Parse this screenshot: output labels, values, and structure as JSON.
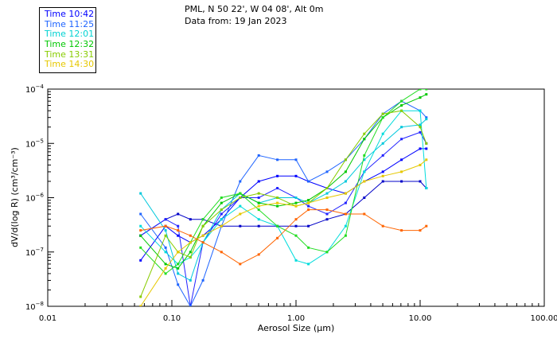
{
  "header": {
    "location": "PML, N 50 22', W 04 08', Alt 0m",
    "date": "Data from: 19 Jan 2023"
  },
  "chart_data": {
    "type": "line",
    "xlabel": "Aerosol Size (μm)",
    "ylabel": "dV/d(log R) (cm³/cm⁻³)",
    "xscale": "log",
    "yscale": "log",
    "xlim": [
      0.01,
      100
    ],
    "ylim": [
      1e-08,
      0.0001
    ],
    "grid": false,
    "legend_position": "top-left (outside plot)",
    "x_ticks": [
      {
        "value": 0.01,
        "label": "0.01"
      },
      {
        "value": 0.1,
        "label": "0.10"
      },
      {
        "value": 1,
        "label": "1.00"
      },
      {
        "value": 10,
        "label": "10.00"
      },
      {
        "value": 100,
        "label": "100.00"
      }
    ],
    "y_ticks": [
      {
        "value": 1e-08,
        "mantissa": "10",
        "exponent": "−8"
      },
      {
        "value": 1e-07,
        "mantissa": "10",
        "exponent": "−7"
      },
      {
        "value": 1e-06,
        "mantissa": "10",
        "exponent": "−6"
      },
      {
        "value": 1e-05,
        "mantissa": "10",
        "exponent": "−5"
      },
      {
        "value": 0.0001,
        "mantissa": "10",
        "exponent": "−4"
      }
    ],
    "x": [
      0.056,
      0.089,
      0.112,
      0.141,
      0.178,
      0.251,
      0.355,
      0.501,
      0.708,
      1.0,
      1.259,
      1.778,
      2.512,
      3.548,
      5.012,
      7.079,
      10.0,
      11.22
    ],
    "series": [
      {
        "name": "Time 10:42",
        "color": "#0000c8",
        "values": [
          2e-07,
          4e-07,
          5e-07,
          4e-07,
          4e-07,
          3e-07,
          3e-07,
          3e-07,
          3e-07,
          3e-07,
          3e-07,
          4e-07,
          5e-07,
          1e-06,
          2e-06,
          2e-06,
          2e-06,
          1.5e-06
        ]
      },
      {
        "name": "Time 10:42",
        "color": "#0000ff",
        "values": [
          7e-08,
          3e-07,
          2e-07,
          1.5e-07,
          2e-07,
          4e-07,
          1e-06,
          2e-06,
          2.5e-06,
          2.5e-06,
          2e-06,
          1.5e-06,
          1.2e-06,
          2e-06,
          3e-06,
          5e-06,
          8e-06,
          8e-06
        ]
      },
      {
        "name": "Time 10:42",
        "color": "#2222ff",
        "values": [
          2e-07,
          4e-07,
          3e-07,
          1e-08,
          1.5e-07,
          5e-07,
          1e-06,
          1e-06,
          1.5e-06,
          1e-06,
          7e-07,
          5e-07,
          8e-07,
          3e-06,
          6e-06,
          1.2e-05,
          1.6e-05,
          1e-05
        ]
      },
      {
        "name": "Time 11:25",
        "color": "#1e64ff",
        "values": [
          5e-07,
          1.2e-07,
          2.5e-08,
          1e-08,
          3e-08,
          3e-07,
          2e-06,
          6e-06,
          5e-06,
          5e-06,
          2e-06,
          3e-06,
          5e-06,
          1.2e-05,
          3.5e-05,
          6e-05,
          4e-05,
          3e-05
        ]
      },
      {
        "name": "Time 12:01",
        "color": "#00c8dc",
        "values": [
          1.2e-06,
          2.5e-07,
          4e-08,
          3e-08,
          1.5e-07,
          6e-07,
          1.2e-06,
          8e-07,
          1e-06,
          1e-06,
          8e-07,
          1.2e-06,
          2e-06,
          5e-06,
          1e-05,
          2e-05,
          2.2e-05,
          2.8e-05
        ]
      },
      {
        "name": "Time 12:01",
        "color": "#00dcdc",
        "values": [
          3e-07,
          1e-07,
          6e-08,
          8e-08,
          1.5e-07,
          4e-07,
          7e-07,
          4e-07,
          3e-07,
          7e-08,
          6e-08,
          1e-07,
          3e-07,
          3e-06,
          1.5e-05,
          4e-05,
          4e-05,
          1.5e-06
        ]
      },
      {
        "name": "Time 12:32",
        "color": "#00c800",
        "values": [
          2e-07,
          6e-08,
          5e-08,
          1e-07,
          3e-07,
          8e-07,
          1.2e-06,
          8e-07,
          7e-07,
          8e-07,
          9e-07,
          1.5e-06,
          3e-06,
          1.2e-05,
          3e-05,
          5e-05,
          7e-05,
          8e-05
        ]
      },
      {
        "name": "Time 12:32",
        "color": "#22dd22",
        "values": [
          1.2e-07,
          4e-08,
          6e-08,
          1.5e-07,
          4e-07,
          1e-06,
          1.2e-06,
          6e-07,
          3e-07,
          2e-07,
          1.2e-07,
          1e-07,
          2e-07,
          6e-06,
          3e-05,
          6e-05,
          0.0001,
          0.0001
        ]
      },
      {
        "name": "Time 13:31",
        "color": "#88cc00",
        "values": [
          1.5e-08,
          2e-07,
          1e-07,
          8e-08,
          3e-07,
          6e-07,
          1e-06,
          1.2e-06,
          1e-06,
          7e-07,
          8e-07,
          1.5e-06,
          5e-06,
          1.5e-05,
          3.5e-05,
          4e-05,
          2e-05,
          1e-05
        ]
      },
      {
        "name": "Time 14:30",
        "color": "#e6c800",
        "values": [
          1e-08,
          5e-08,
          1e-07,
          1.5e-07,
          2e-07,
          3e-07,
          5e-07,
          7e-07,
          8e-07,
          7e-07,
          8e-07,
          1e-06,
          1.2e-06,
          2e-06,
          2.5e-06,
          3e-06,
          4e-06,
          5e-06
        ]
      },
      {
        "name": "Time 14:30",
        "color": "#ff6400",
        "values": [
          2.5e-07,
          3e-07,
          2.5e-07,
          2e-07,
          1.5e-07,
          1e-07,
          6e-08,
          9e-08,
          1.8e-07,
          4e-07,
          6e-07,
          6e-07,
          5e-07,
          5e-07,
          3e-07,
          2.5e-07,
          2.5e-07,
          3e-07
        ]
      }
    ],
    "legend": [
      {
        "label": "Time 10:42",
        "color": "#0000ff"
      },
      {
        "label": "Time 11:25",
        "color": "#1e64ff"
      },
      {
        "label": "Time 12:01",
        "color": "#00d2d2"
      },
      {
        "label": "Time 12:32",
        "color": "#00c800"
      },
      {
        "label": "Time 13:31",
        "color": "#88cc00"
      },
      {
        "label": "Time 14:30",
        "color": "#e6c800"
      }
    ]
  }
}
